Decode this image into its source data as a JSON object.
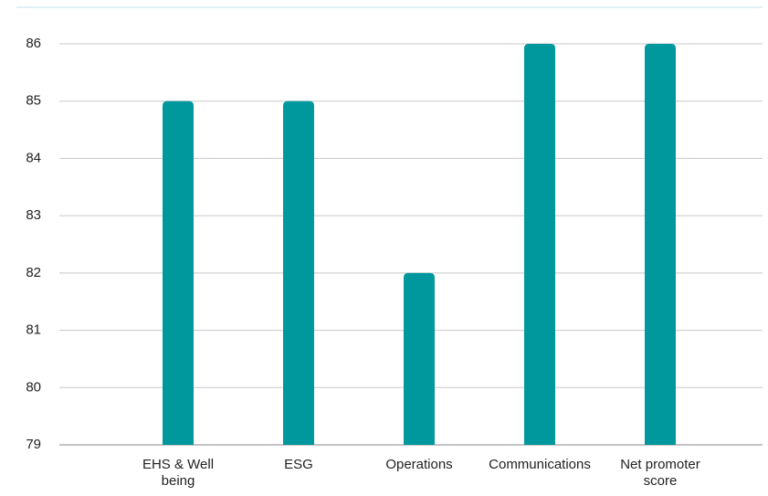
{
  "chart_data": {
    "type": "bar",
    "categories": [
      "EHS & Well being",
      "ESG",
      "Operations",
      "Communications",
      "Net promoter score"
    ],
    "values": [
      85,
      85,
      82,
      86,
      86
    ],
    "color": "#00979d",
    "ylim": [
      79,
      86
    ],
    "yticks": [
      79,
      80,
      81,
      82,
      83,
      84,
      85,
      86
    ],
    "grid": true
  }
}
